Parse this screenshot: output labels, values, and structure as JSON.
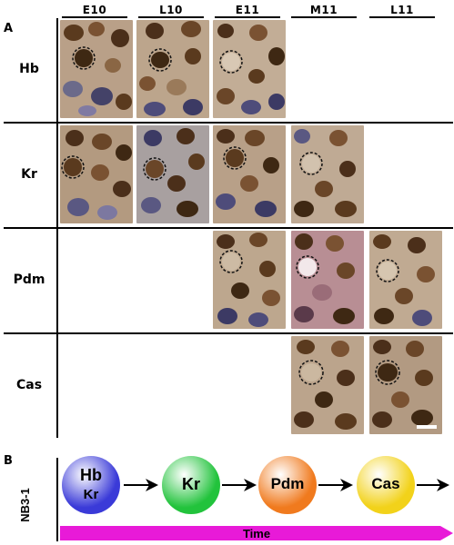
{
  "panel_a": {
    "letter": "A",
    "columns": [
      "E10",
      "L10",
      "E11",
      "M11",
      "L11"
    ],
    "rows": [
      "Hb",
      "Kr",
      "Pdm",
      "Cas"
    ]
  },
  "panel_b": {
    "letter": "B",
    "lineage": "NB3-1",
    "stages": [
      {
        "top": "Hb",
        "bottom": "Kr",
        "color": "#3a3ad8"
      },
      {
        "top": "Kr",
        "bottom": "",
        "color": "#22c33c"
      },
      {
        "top": "Pdm",
        "bottom": "",
        "color": "#f07a1e"
      },
      {
        "top": "Cas",
        "bottom": "",
        "color": "#f2d21a"
      }
    ],
    "time_label": "Time",
    "time_color": "#e81ad8"
  }
}
